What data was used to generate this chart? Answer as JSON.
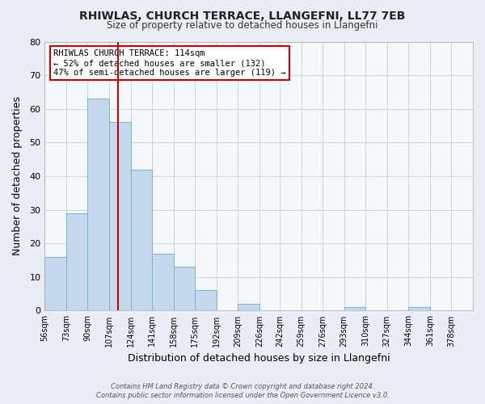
{
  "title": "RHIWLAS, CHURCH TERRACE, LLANGEFNI, LL77 7EB",
  "subtitle": "Size of property relative to detached houses in Llangefni",
  "xlabel": "Distribution of detached houses by size in Llangefni",
  "ylabel": "Number of detached properties",
  "bins": [
    56,
    73,
    90,
    107,
    124,
    141,
    158,
    175,
    192,
    209,
    226,
    242,
    259,
    276,
    293,
    310,
    327,
    344,
    361,
    378,
    395
  ],
  "counts": [
    16,
    29,
    63,
    56,
    42,
    17,
    13,
    6,
    0,
    2,
    0,
    0,
    0,
    0,
    1,
    0,
    0,
    1,
    0,
    0
  ],
  "bar_color": "#c5d9ed",
  "bar_edge_color": "#7eafd4",
  "property_size": 114,
  "vline_color": "#cc0000",
  "annotation_line1": "RHIWLAS CHURCH TERRACE: 114sqm",
  "annotation_line2": "← 52% of detached houses are smaller (132)",
  "annotation_line3": "47% of semi-detached houses are larger (119) →",
  "annotation_box_color": "#ffffff",
  "annotation_box_edge_color": "#cc0000",
  "ylim": [
    0,
    80
  ],
  "yticks": [
    0,
    10,
    20,
    30,
    40,
    50,
    60,
    70,
    80
  ],
  "footer_line1": "Contains HM Land Registry data © Crown copyright and database right 2024.",
  "footer_line2": "Contains public sector information licensed under the Open Government Licence v3.0.",
  "bg_color": "#e8eef4",
  "plot_bg_color": "#f5f8fb",
  "grid_color": "#c8d8e8"
}
